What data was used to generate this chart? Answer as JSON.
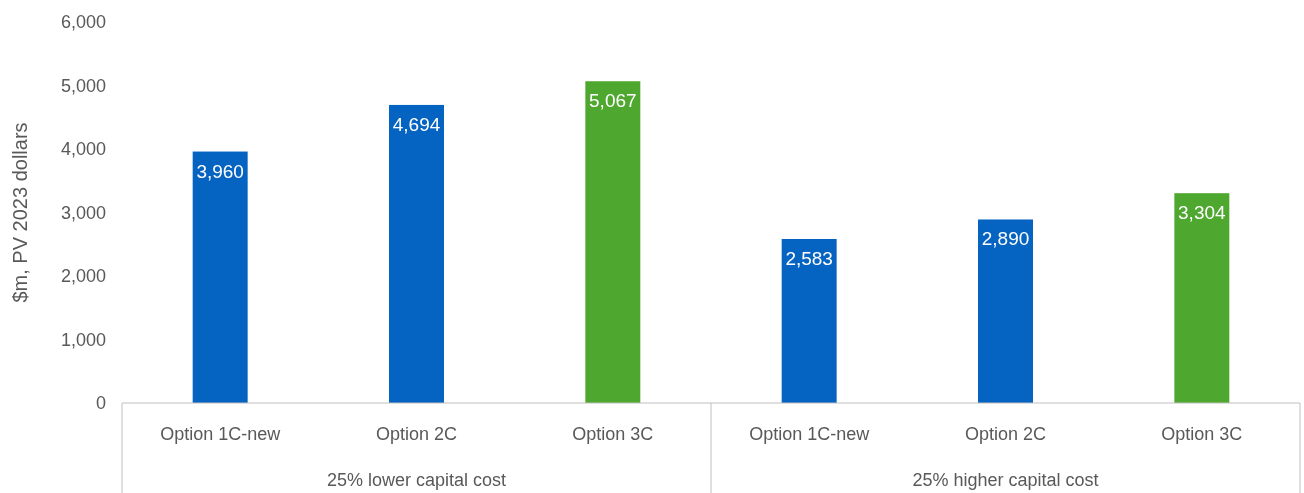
{
  "chart_data": {
    "type": "bar",
    "ylabel": "$m, PV 2023 dollars",
    "categories": [
      "Option 1C-new",
      "Option 2C",
      "Option 3C",
      "Option 1C-new",
      "Option 2C",
      "Option 3C"
    ],
    "values": [
      3960,
      4694,
      5067,
      2583,
      2890,
      3304
    ],
    "colors": [
      "#0563c1",
      "#0563c1",
      "#4ea72e",
      "#0563c1",
      "#0563c1",
      "#4ea72e"
    ],
    "ylim": [
      0,
      6000
    ],
    "yticks": [
      {
        "value": 0,
        "label": "0"
      },
      {
        "value": 1000,
        "label": "1,000"
      },
      {
        "value": 2000,
        "label": "2,000"
      },
      {
        "value": 3000,
        "label": "3,000"
      },
      {
        "value": 4000,
        "label": "4,000"
      },
      {
        "value": 5000,
        "label": "5,000"
      },
      {
        "value": 6000,
        "label": "6,000"
      }
    ],
    "value_labels": [
      "3,960",
      "4,694",
      "5,067",
      "2,583",
      "2,890",
      "3,304"
    ],
    "annotations": [
      "25% lower capital cost",
      "25% higher capital cost"
    ]
  }
}
